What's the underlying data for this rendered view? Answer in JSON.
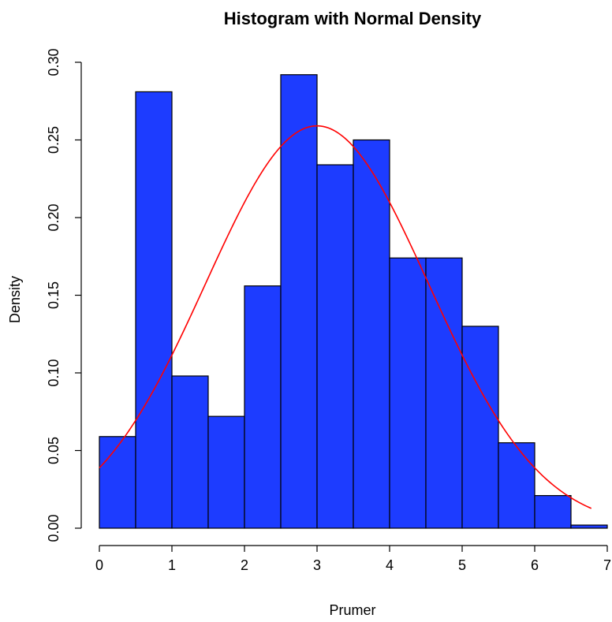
{
  "chart_data": {
    "type": "bar",
    "subtype": "histogram",
    "title": "Histogram with Normal Density",
    "xlabel": "Prumer",
    "ylabel": "Density",
    "xlim": [
      0,
      7
    ],
    "ylim": [
      0,
      0.3
    ],
    "x_ticks": [
      0,
      1,
      2,
      3,
      4,
      5,
      6,
      7
    ],
    "y_ticks": [
      "0.00",
      "0.05",
      "0.10",
      "0.15",
      "0.20",
      "0.25",
      "0.30"
    ],
    "bin_edges": [
      0,
      0.5,
      1,
      1.5,
      2,
      2.5,
      3,
      3.5,
      4,
      4.5,
      5,
      5.5,
      6,
      6.5,
      7
    ],
    "values": [
      0.059,
      0.281,
      0.098,
      0.072,
      0.156,
      0.292,
      0.234,
      0.25,
      0.174,
      0.174,
      0.13,
      0.055,
      0.021,
      0.002
    ],
    "bar_color": "#1d3cff",
    "density_curve": {
      "distribution": "normal",
      "mean": 3.0,
      "sd": 1.54,
      "x_range": [
        0,
        6.78
      ],
      "color": "#ff0000"
    },
    "grid": false,
    "legend": "none"
  }
}
